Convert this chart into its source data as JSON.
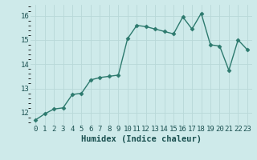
{
  "x": [
    0,
    1,
    2,
    3,
    4,
    5,
    6,
    7,
    8,
    9,
    10,
    11,
    12,
    13,
    14,
    15,
    16,
    17,
    18,
    19,
    20,
    21,
    22,
    23
  ],
  "y": [
    11.7,
    11.95,
    12.15,
    12.2,
    12.75,
    12.8,
    13.35,
    13.45,
    13.5,
    13.55,
    15.05,
    15.6,
    15.55,
    15.45,
    15.35,
    15.25,
    15.95,
    15.45,
    16.1,
    14.8,
    14.75,
    13.75,
    15.0,
    14.6
  ],
  "line_color": "#2d7a6e",
  "marker": "D",
  "marker_size": 2.5,
  "linewidth": 1.0,
  "xlabel": "Humidex (Indice chaleur)",
  "ylim": [
    11.5,
    16.45
  ],
  "xlim": [
    -0.5,
    23.5
  ],
  "yticks": [
    12,
    13,
    14,
    15,
    16
  ],
  "xtick_labels": [
    "0",
    "1",
    "2",
    "3",
    "4",
    "5",
    "6",
    "7",
    "8",
    "9",
    "10",
    "11",
    "12",
    "13",
    "14",
    "15",
    "16",
    "17",
    "18",
    "19",
    "20",
    "21",
    "22",
    "23"
  ],
  "bg_color": "#ceeaea",
  "grid_color": "#b8d8d8",
  "font_color": "#1a5050",
  "xlabel_fontsize": 7.5,
  "tick_fontsize": 6.5
}
